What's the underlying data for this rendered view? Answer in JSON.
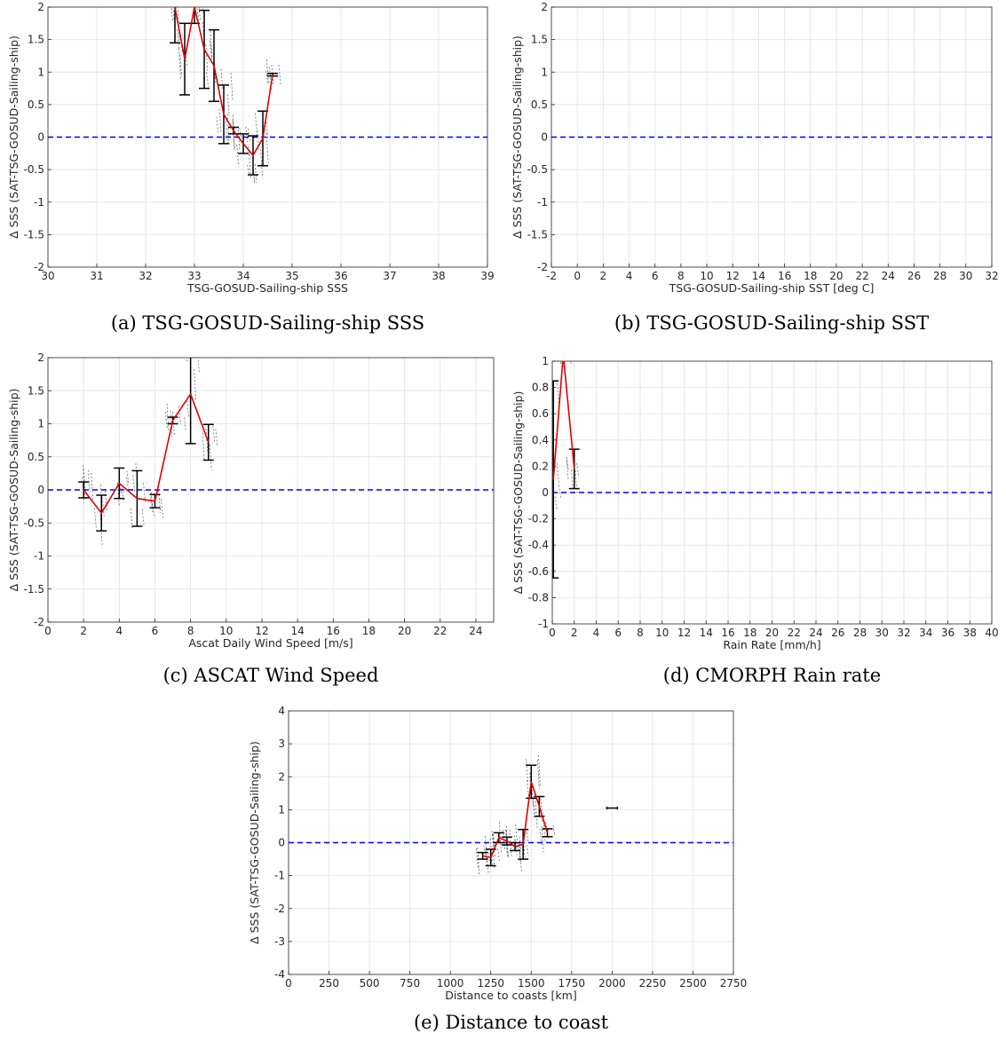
{
  "colors": {
    "zero_line": "#0000ff",
    "mean_line": "#e00000",
    "error_bar": "#000000",
    "scatter": "#555555"
  },
  "chart_data": [
    {
      "type": "line",
      "caption": "(a) TSG-GOSUD-Sailing-ship SSS",
      "xlabel": "TSG-GOSUD-Sailing-ship SSS",
      "ylabel": "Δ SSS (SAT-TSG-GOSUD-Sailing-ship)",
      "xlim": [
        30,
        39
      ],
      "ylim": [
        -2,
        2
      ],
      "xticks": [
        30,
        31,
        32,
        33,
        34,
        35,
        36,
        37,
        38,
        39
      ],
      "yticks": [
        -2,
        -1.5,
        -1,
        -0.5,
        0,
        0.5,
        1,
        1.5,
        2
      ],
      "grid": true,
      "reference_line": 0,
      "mean": {
        "x": [
          32.6,
          32.8,
          33.0,
          33.2,
          33.4,
          33.6,
          33.8,
          34.0,
          34.2,
          34.4,
          34.6
        ],
        "y": [
          2.0,
          1.2,
          2.0,
          1.35,
          1.1,
          0.35,
          0.1,
          -0.1,
          -0.28,
          -0.02,
          0.96
        ],
        "err": [
          0.55,
          0.55,
          0.25,
          0.6,
          0.55,
          0.45,
          0.05,
          0.15,
          0.3,
          0.42,
          0.02
        ]
      }
    },
    {
      "type": "line",
      "caption": "(b) TSG-GOSUD-Sailing-ship SST",
      "xlabel": "TSG-GOSUD-Sailing-ship SST [deg C]",
      "ylabel": "Δ SSS (SAT-TSG-GOSUD-Sailing-ship)",
      "xlim": [
        -2,
        32
      ],
      "ylim": [
        -2,
        2
      ],
      "xticks": [
        -2,
        0,
        2,
        4,
        6,
        8,
        10,
        12,
        14,
        16,
        18,
        20,
        22,
        24,
        26,
        28,
        30,
        32
      ],
      "yticks": [
        -2,
        -1.5,
        -1,
        -0.5,
        0,
        0.5,
        1,
        1.5,
        2
      ],
      "grid": true,
      "reference_line": 0,
      "mean": {
        "x": [],
        "y": [],
        "err": []
      }
    },
    {
      "type": "line",
      "caption": "(c) ASCAT Wind Speed",
      "xlabel": "Ascat Daily Wind Speed [m/s]",
      "ylabel": "Δ SSS (SAT-TSG-GOSUD-Sailing-ship)",
      "xlim": [
        0,
        25
      ],
      "ylim": [
        -2,
        2
      ],
      "xticks": [
        0,
        2,
        4,
        6,
        8,
        10,
        12,
        14,
        16,
        18,
        20,
        22,
        24
      ],
      "yticks": [
        -2,
        -1.5,
        -1,
        -0.5,
        0,
        0.5,
        1,
        1.5,
        2
      ],
      "grid": true,
      "reference_line": 0,
      "mean": {
        "x": [
          2,
          3,
          4,
          5,
          6,
          7,
          8,
          9
        ],
        "y": [
          0.0,
          -0.35,
          0.1,
          -0.13,
          -0.17,
          1.05,
          1.45,
          0.72
        ],
        "err": [
          0.12,
          0.27,
          0.23,
          0.42,
          0.1,
          0.05,
          0.75,
          0.27
        ]
      }
    },
    {
      "type": "line",
      "caption": "(d) CMORPH Rain rate",
      "xlabel": "Rain Rate [mm/h]",
      "ylabel": "Δ SSS (SAT-TSG-GOSUD-Sailing-ship)",
      "xlim": [
        0,
        40
      ],
      "ylim": [
        -1,
        1
      ],
      "xticks": [
        0,
        2,
        4,
        6,
        8,
        10,
        12,
        14,
        16,
        18,
        20,
        22,
        24,
        26,
        28,
        30,
        32,
        34,
        36,
        38,
        40
      ],
      "yticks": [
        -1,
        -0.8,
        -0.6,
        -0.4,
        -0.2,
        0,
        0.2,
        0.4,
        0.6,
        0.8,
        1
      ],
      "grid": true,
      "reference_line": 0,
      "mean": {
        "x": [
          0.1,
          1.0,
          2.0
        ],
        "y": [
          0.1,
          1.05,
          0.18
        ],
        "err": [
          0.75,
          0.0,
          0.15
        ]
      }
    },
    {
      "type": "line",
      "caption": "(e) Distance to coast",
      "xlabel": "Distance to coasts [km]",
      "ylabel": "Δ SSS (SAT-TSG-GOSUD-Sailing-ship)",
      "xlim": [
        0,
        2750
      ],
      "ylim": [
        -4,
        4
      ],
      "xticks": [
        0,
        250,
        500,
        750,
        1000,
        1250,
        1500,
        1750,
        2000,
        2250,
        2500,
        2750
      ],
      "yticks": [
        -4,
        -3,
        -2,
        -1,
        0,
        1,
        2,
        3,
        4
      ],
      "grid": true,
      "reference_line": 0,
      "mean": {
        "x": [
          1200,
          1250,
          1300,
          1350,
          1400,
          1450,
          1500,
          1550,
          1600
        ],
        "y": [
          -0.4,
          -0.45,
          0.15,
          0.05,
          -0.12,
          -0.05,
          1.85,
          1.1,
          0.3
        ],
        "err": [
          0.1,
          0.25,
          0.15,
          0.12,
          0.12,
          0.45,
          0.5,
          0.3,
          0.12
        ]
      },
      "isolated_point": {
        "x": 2000,
        "y": 1.05,
        "err": 0.04
      }
    }
  ]
}
